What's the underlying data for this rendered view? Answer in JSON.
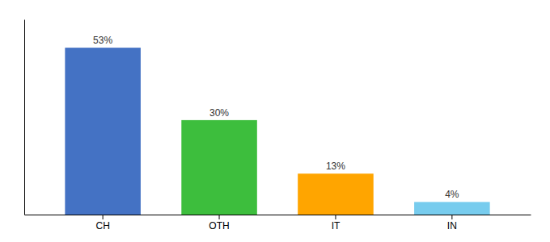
{
  "chart_data": {
    "type": "bar",
    "categories": [
      "CH",
      "OTH",
      "IT",
      "IN"
    ],
    "values": [
      53,
      30,
      13,
      4
    ],
    "value_labels": [
      "53%",
      "30%",
      "13%",
      "4%"
    ],
    "colors": [
      "#4472C4",
      "#3DBE3D",
      "#FFA500",
      "#77CCEE"
    ],
    "ylim": [
      0,
      62
    ],
    "data_labels": true,
    "tick_labels": "x"
  }
}
